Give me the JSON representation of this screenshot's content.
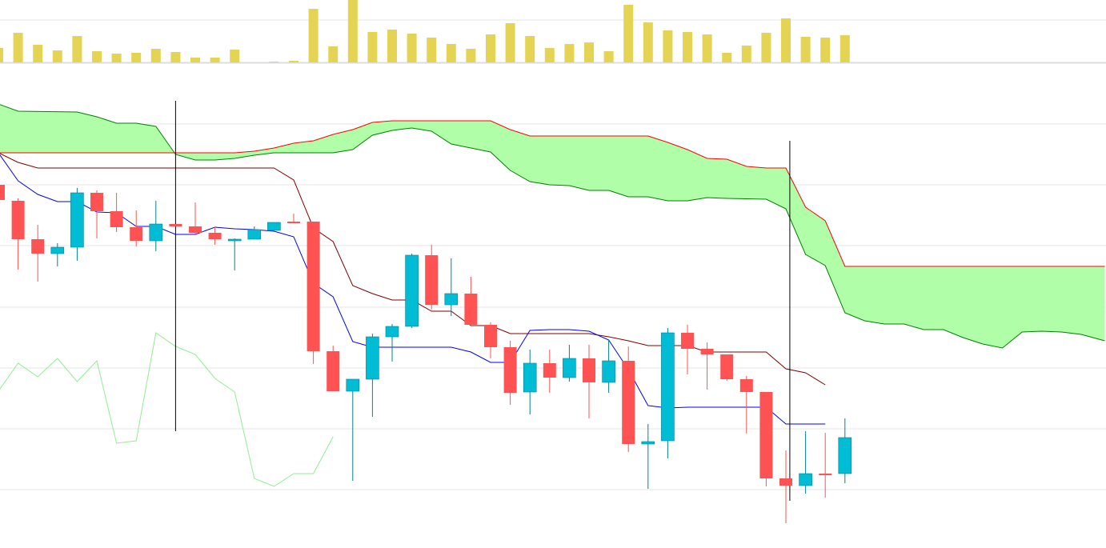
{
  "chart_data": {
    "type": "candlestick",
    "title": "",
    "xlabel": "",
    "ylabel": "",
    "grid": true,
    "colors": {
      "up": "#00bcd4",
      "down": "#ff5252",
      "volume": "#e5d354",
      "tenkan": "#0000ff",
      "kijun": "#800000",
      "chikou": "#90ee90",
      "span_a": "#008000",
      "span_b": "#ff0000",
      "cloud": "#b0ffa8",
      "marker": "#000000",
      "grid": "#e6e6e6"
    },
    "candles": [
      [
        454,
        435,
        454,
        435
      ],
      [
        434,
        386,
        437,
        348
      ],
      [
        386,
        368,
        404,
        333
      ],
      [
        368,
        376,
        381,
        352
      ],
      [
        376,
        444,
        450,
        359
      ],
      [
        444,
        421,
        447,
        387
      ],
      [
        421,
        401,
        444,
        395
      ],
      [
        401,
        384,
        422,
        377
      ],
      [
        384,
        405,
        434,
        371
      ],
      [
        405,
        402,
        405,
        402
      ],
      [
        402,
        394,
        432,
        391
      ],
      [
        394,
        386,
        401,
        379
      ],
      [
        385,
        386,
        387,
        347
      ],
      [
        386,
        398,
        402,
        386
      ],
      [
        397,
        407,
        407,
        397
      ],
      [
        408,
        407,
        418,
        406
      ],
      [
        408,
        246,
        408,
        230
      ],
      [
        246,
        196,
        253,
        196
      ],
      [
        196,
        211,
        211,
        84
      ],
      [
        211,
        264,
        268,
        164
      ],
      [
        264,
        277,
        280,
        233
      ],
      [
        277,
        366,
        368,
        275
      ],
      [
        366,
        304,
        379,
        298
      ],
      [
        304,
        318,
        362,
        290
      ],
      [
        318,
        279,
        339,
        278
      ],
      [
        279,
        251,
        282,
        237
      ],
      [
        251,
        194,
        259,
        179
      ],
      [
        195,
        231,
        248,
        167
      ],
      [
        231,
        213,
        248,
        194
      ],
      [
        213,
        237,
        254,
        208
      ],
      [
        237,
        207,
        254,
        162
      ],
      [
        207,
        234,
        260,
        194
      ],
      [
        234,
        130,
        252,
        120
      ],
      [
        130,
        133,
        155,
        74
      ],
      [
        134,
        269,
        275,
        112
      ],
      [
        269,
        249,
        279,
        217
      ],
      [
        249,
        242,
        257,
        198
      ],
      [
        242,
        211,
        242,
        209
      ],
      [
        211,
        195,
        215,
        143
      ],
      [
        195,
        87,
        195,
        77
      ],
      [
        87,
        78,
        122,
        31
      ],
      [
        78,
        93,
        146,
        68
      ],
      [
        93,
        92,
        144,
        63
      ],
      [
        93,
        138,
        162,
        81
      ]
    ],
    "candle_fields": [
      "open",
      "close",
      "high",
      "low"
    ],
    "volume": [
      18,
      37,
      22,
      15,
      33,
      14,
      11,
      12,
      17,
      13,
      6,
      6,
      16,
      0,
      1,
      2,
      67,
      20,
      78,
      38,
      41,
      36,
      31,
      23,
      17,
      35,
      49,
      33,
      18,
      23,
      25,
      14,
      72,
      50,
      40,
      38,
      35,
      12,
      21,
      37,
      55,
      32,
      31,
      34
    ],
    "tenkan": [
      [
        0,
        494
      ],
      [
        1,
        459
      ],
      [
        2,
        442
      ],
      [
        3,
        433
      ],
      [
        4,
        433
      ],
      [
        5,
        420
      ],
      [
        6,
        419
      ],
      [
        7,
        402
      ],
      [
        8,
        402
      ],
      [
        9,
        392
      ],
      [
        10,
        392
      ],
      [
        11,
        401
      ],
      [
        12,
        399
      ],
      [
        13,
        398
      ],
      [
        14,
        396
      ],
      [
        15,
        389
      ],
      [
        16,
        331
      ],
      [
        17,
        314
      ],
      [
        18,
        258
      ],
      [
        19,
        251
      ],
      [
        23,
        251
      ],
      [
        24,
        245
      ],
      [
        25,
        232
      ],
      [
        26,
        232
      ],
      [
        27,
        272
      ],
      [
        28,
        273
      ],
      [
        29,
        273
      ],
      [
        30,
        271
      ],
      [
        31,
        260
      ],
      [
        32,
        223
      ],
      [
        33,
        178
      ],
      [
        34,
        175
      ],
      [
        35,
        176
      ],
      [
        39,
        176
      ],
      [
        40,
        155
      ],
      [
        42,
        155
      ]
    ],
    "kijun": [
      [
        0,
        494
      ],
      [
        1,
        482
      ],
      [
        2,
        475
      ],
      [
        14,
        475
      ],
      [
        15,
        460
      ],
      [
        16,
        400
      ],
      [
        17,
        383
      ],
      [
        18,
        328
      ],
      [
        19,
        318
      ],
      [
        20,
        310
      ],
      [
        21,
        310
      ],
      [
        22,
        296
      ],
      [
        23,
        296
      ],
      [
        24,
        278
      ],
      [
        25,
        278
      ],
      [
        26,
        268
      ],
      [
        30,
        268
      ],
      [
        31,
        264
      ],
      [
        32,
        259
      ],
      [
        33,
        253
      ],
      [
        35,
        253
      ],
      [
        36,
        245
      ],
      [
        39,
        245
      ],
      [
        40,
        224
      ],
      [
        41,
        219
      ],
      [
        42,
        204
      ]
    ],
    "chikou": [
      [
        0,
        196
      ],
      [
        1,
        231
      ],
      [
        2,
        214
      ],
      [
        3,
        237
      ],
      [
        4,
        208
      ],
      [
        5,
        234
      ],
      [
        6,
        131
      ],
      [
        7,
        134
      ],
      [
        8,
        269
      ],
      [
        9,
        252
      ],
      [
        10,
        242
      ],
      [
        11,
        212
      ],
      [
        12,
        195
      ],
      [
        13,
        87
      ],
      [
        14,
        77
      ],
      [
        15,
        93
      ],
      [
        16,
        93
      ],
      [
        17,
        139
      ]
    ],
    "span_a": [
      [
        0,
        555
      ],
      [
        1,
        546
      ],
      [
        4,
        545
      ],
      [
        5,
        539
      ],
      [
        6,
        531
      ],
      [
        7,
        531
      ],
      [
        8,
        527
      ],
      [
        9,
        492
      ],
      [
        10,
        485
      ],
      [
        11,
        485
      ],
      [
        12,
        487
      ],
      [
        13,
        491
      ],
      [
        14,
        494
      ],
      [
        17,
        494
      ],
      [
        18,
        498
      ],
      [
        19,
        516
      ],
      [
        20,
        522
      ],
      [
        21,
        525
      ],
      [
        22,
        521
      ],
      [
        23,
        505
      ],
      [
        24,
        500
      ],
      [
        25,
        495
      ],
      [
        26,
        472
      ],
      [
        27,
        458
      ],
      [
        28,
        454
      ],
      [
        29,
        453
      ],
      [
        30,
        447
      ],
      [
        31,
        447
      ],
      [
        32,
        439
      ],
      [
        33,
        439
      ],
      [
        34,
        434
      ],
      [
        35,
        434
      ],
      [
        36,
        438
      ],
      [
        37,
        437
      ],
      [
        39,
        436
      ],
      [
        40,
        424
      ],
      [
        41,
        367
      ],
      [
        42,
        353
      ],
      [
        43,
        294
      ],
      [
        44,
        284
      ],
      [
        45,
        280
      ],
      [
        46,
        280
      ],
      [
        47,
        273
      ],
      [
        48,
        273
      ],
      [
        49,
        263
      ],
      [
        50,
        255
      ],
      [
        51,
        250
      ],
      [
        52,
        270
      ],
      [
        53,
        271
      ],
      [
        54,
        270
      ],
      [
        55,
        267
      ],
      [
        56.2,
        259
      ]
    ],
    "span_b": [
      [
        0,
        494
      ],
      [
        9,
        494
      ],
      [
        12,
        494
      ],
      [
        13,
        496
      ],
      [
        14,
        500
      ],
      [
        15,
        506
      ],
      [
        16,
        509
      ],
      [
        17,
        517
      ],
      [
        18,
        523
      ],
      [
        19,
        532
      ],
      [
        20,
        534
      ],
      [
        25,
        534
      ],
      [
        26,
        523
      ],
      [
        27,
        515
      ],
      [
        33,
        515
      ],
      [
        34,
        507
      ],
      [
        35,
        498
      ],
      [
        36,
        487
      ],
      [
        37,
        486
      ],
      [
        38,
        477
      ],
      [
        39,
        475
      ],
      [
        40,
        475
      ],
      [
        41,
        426
      ],
      [
        42,
        409
      ],
      [
        43,
        352
      ],
      [
        56.2,
        352
      ]
    ],
    "vertical_markers": [
      {
        "index": 9,
        "from": 146,
        "to": 559
      },
      {
        "index": 40.2,
        "from": 59,
        "to": 509
      }
    ],
    "price_gridlines": [
      530,
      454,
      378,
      301,
      225,
      149,
      73
    ],
    "volume_gridlines": [
      53
    ]
  }
}
